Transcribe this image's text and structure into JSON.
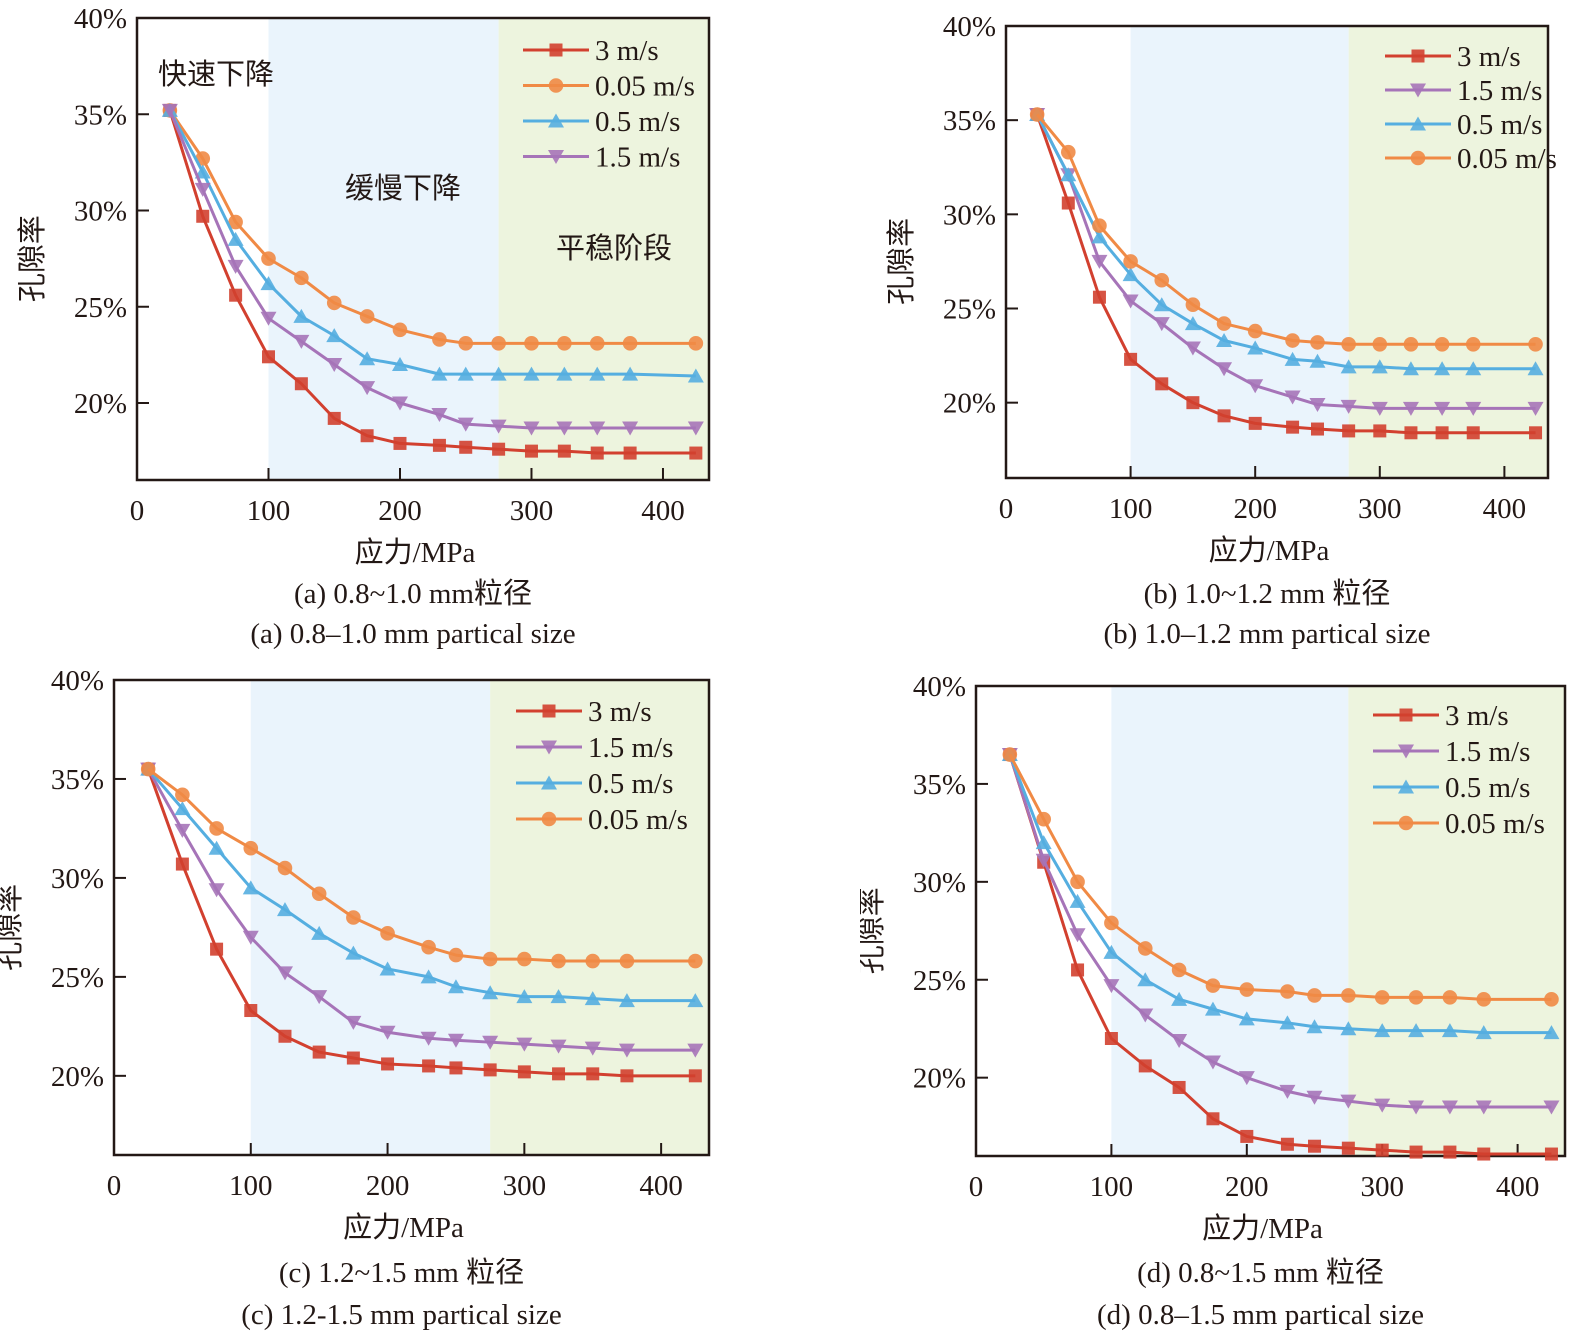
{
  "figure": {
    "xlabel": "应力/MPa",
    "ylabel": "孔隙率",
    "stage_labels": [
      "快速下降",
      "缓慢下降",
      "平稳阶段"
    ]
  },
  "colors": {
    "3 m/s": "#d2402f",
    "0.05 m/s": "#f08a45",
    "0.5 m/s": "#55aee0",
    "1.5 m/s": "#a674b8",
    "slow_zone": "#eaf4fc",
    "stable_zone": "#edf4de",
    "axis": "#231815"
  },
  "chart_data": [
    {
      "type": "line",
      "caption_cn": "(a) 0.8~1.0 mm粒径",
      "caption_en": "(a) 0.8–1.0 mm partical size",
      "xlabel": "应力/MPa",
      "ylabel": "孔隙率",
      "xlim": [
        0,
        435
      ],
      "ylim": [
        16,
        40
      ],
      "xticks": [
        0,
        100,
        200,
        300,
        400
      ],
      "yticks": [
        "20%",
        "25%",
        "30%",
        "35%",
        "40%"
      ],
      "zones": {
        "slow_start": 100,
        "stable_start": 275
      },
      "show_stage_labels": true,
      "legend_position": "top-right",
      "x": [
        25,
        50,
        75,
        100,
        125,
        150,
        175,
        200,
        230,
        250,
        275,
        300,
        325,
        350,
        375,
        425
      ],
      "series": [
        {
          "name": "3 m/s",
          "marker": "square",
          "values": [
            35.2,
            29.7,
            25.6,
            22.4,
            21.0,
            19.2,
            18.3,
            17.9,
            17.8,
            17.7,
            17.6,
            17.5,
            17.5,
            17.4,
            17.4,
            17.4
          ]
        },
        {
          "name": "0.05 m/s",
          "marker": "circle",
          "values": [
            35.2,
            32.7,
            29.4,
            27.5,
            26.5,
            25.2,
            24.5,
            23.8,
            23.3,
            23.1,
            23.1,
            23.1,
            23.1,
            23.1,
            23.1,
            23.1
          ]
        },
        {
          "name": "0.5 m/s",
          "marker": "triangle-up",
          "values": [
            35.2,
            32.0,
            28.5,
            26.2,
            24.5,
            23.5,
            22.3,
            22.0,
            21.5,
            21.5,
            21.5,
            21.5,
            21.5,
            21.5,
            21.5,
            21.4
          ]
        },
        {
          "name": "1.5 m/s",
          "marker": "triangle-down",
          "values": [
            35.2,
            31.1,
            27.1,
            24.4,
            23.2,
            22.0,
            20.8,
            20.0,
            19.4,
            18.9,
            18.8,
            18.7,
            18.7,
            18.7,
            18.7,
            18.7
          ]
        }
      ]
    },
    {
      "type": "line",
      "caption_cn": "(b) 1.0~1.2 mm 粒径",
      "caption_en": "(b) 1.0–1.2 mm partical size",
      "xlabel": "应力/MPa",
      "ylabel": "孔隙率",
      "xlim": [
        0,
        435
      ],
      "ylim": [
        16,
        40
      ],
      "xticks": [
        0,
        100,
        200,
        300,
        400
      ],
      "yticks": [
        "20%",
        "25%",
        "30%",
        "35%",
        "40%"
      ],
      "zones": {
        "slow_start": 100,
        "stable_start": 275
      },
      "show_stage_labels": false,
      "legend_position": "top-right",
      "x": [
        25,
        50,
        75,
        100,
        125,
        150,
        175,
        200,
        230,
        250,
        275,
        300,
        325,
        350,
        375,
        425
      ],
      "series": [
        {
          "name": "3 m/s",
          "marker": "square",
          "values": [
            35.3,
            30.6,
            25.6,
            22.3,
            21.0,
            20.0,
            19.3,
            18.9,
            18.7,
            18.6,
            18.5,
            18.5,
            18.4,
            18.4,
            18.4,
            18.4
          ]
        },
        {
          "name": "1.5 m/s",
          "marker": "triangle-down",
          "values": [
            35.3,
            32.1,
            27.5,
            25.4,
            24.2,
            22.9,
            21.8,
            20.9,
            20.3,
            19.9,
            19.8,
            19.7,
            19.7,
            19.7,
            19.7,
            19.7
          ]
        },
        {
          "name": "0.5 m/s",
          "marker": "triangle-up",
          "values": [
            35.3,
            32.1,
            28.8,
            26.8,
            25.2,
            24.2,
            23.3,
            22.9,
            22.3,
            22.2,
            21.9,
            21.9,
            21.8,
            21.8,
            21.8,
            21.8
          ]
        },
        {
          "name": "0.05 m/s",
          "marker": "circle",
          "values": [
            35.3,
            33.3,
            29.4,
            27.5,
            26.5,
            25.2,
            24.2,
            23.8,
            23.3,
            23.2,
            23.1,
            23.1,
            23.1,
            23.1,
            23.1,
            23.1
          ]
        }
      ]
    },
    {
      "type": "line",
      "caption_cn": "(c) 1.2~1.5 mm 粒径",
      "caption_en": "(c) 1.2-1.5 mm partical size",
      "xlabel": "应力/MPa",
      "ylabel": "孔隙率",
      "xlim": [
        0,
        435
      ],
      "ylim": [
        16,
        40
      ],
      "xticks": [
        0,
        100,
        200,
        300,
        400
      ],
      "yticks": [
        "20%",
        "25%",
        "30%",
        "35%",
        "40%"
      ],
      "zones": {
        "slow_start": 100,
        "stable_start": 275
      },
      "show_stage_labels": false,
      "legend_position": "top-right",
      "x": [
        25,
        50,
        75,
        100,
        125,
        150,
        175,
        200,
        230,
        250,
        275,
        300,
        325,
        350,
        375,
        425
      ],
      "series": [
        {
          "name": "3 m/s",
          "marker": "square",
          "values": [
            35.5,
            30.7,
            26.4,
            23.3,
            22.0,
            21.2,
            20.9,
            20.6,
            20.5,
            20.4,
            20.3,
            20.2,
            20.1,
            20.1,
            20.0,
            20.0
          ]
        },
        {
          "name": "1.5 m/s",
          "marker": "triangle-down",
          "values": [
            35.5,
            32.4,
            29.4,
            27.0,
            25.2,
            24.0,
            22.7,
            22.2,
            21.9,
            21.8,
            21.7,
            21.6,
            21.5,
            21.4,
            21.3,
            21.3
          ]
        },
        {
          "name": "0.5 m/s",
          "marker": "triangle-up",
          "values": [
            35.5,
            33.5,
            31.5,
            29.5,
            28.4,
            27.2,
            26.2,
            25.4,
            25.0,
            24.5,
            24.2,
            24.0,
            24.0,
            23.9,
            23.8,
            23.8
          ]
        },
        {
          "name": "0.05 m/s",
          "marker": "circle",
          "values": [
            35.5,
            34.2,
            32.5,
            31.5,
            30.5,
            29.2,
            28.0,
            27.2,
            26.5,
            26.1,
            25.9,
            25.9,
            25.8,
            25.8,
            25.8,
            25.8
          ]
        }
      ]
    },
    {
      "type": "line",
      "caption_cn": "(d)  0.8~1.5 mm 粒径",
      "caption_en": "(d) 0.8–1.5 mm partical size",
      "xlabel": "应力/MPa",
      "ylabel": "孔隙率",
      "xlim": [
        0,
        435
      ],
      "ylim": [
        16,
        40
      ],
      "xticks": [
        0,
        100,
        200,
        300,
        400
      ],
      "yticks": [
        "20%",
        "25%",
        "30%",
        "35%",
        "40%"
      ],
      "zones": {
        "slow_start": 100,
        "stable_start": 275
      },
      "show_stage_labels": false,
      "legend_position": "top-right",
      "x": [
        25,
        50,
        75,
        100,
        125,
        150,
        175,
        200,
        230,
        250,
        275,
        300,
        325,
        350,
        375,
        425
      ],
      "series": [
        {
          "name": "3 m/s",
          "marker": "square",
          "values": [
            36.5,
            31.0,
            25.5,
            22.0,
            20.6,
            19.5,
            17.9,
            17.0,
            16.6,
            16.5,
            16.4,
            16.3,
            16.2,
            16.2,
            16.1,
            16.1
          ]
        },
        {
          "name": "1.5 m/s",
          "marker": "triangle-down",
          "values": [
            36.5,
            31.1,
            27.3,
            24.7,
            23.2,
            21.9,
            20.8,
            20.0,
            19.3,
            19.0,
            18.8,
            18.6,
            18.5,
            18.5,
            18.5,
            18.5
          ]
        },
        {
          "name": "0.5 m/s",
          "marker": "triangle-up",
          "values": [
            36.5,
            32.0,
            29.0,
            26.4,
            25.0,
            24.0,
            23.5,
            23.0,
            22.8,
            22.6,
            22.5,
            22.4,
            22.4,
            22.4,
            22.3,
            22.3
          ]
        },
        {
          "name": "0.05 m/s",
          "marker": "circle",
          "values": [
            36.5,
            33.2,
            30.0,
            27.9,
            26.6,
            25.5,
            24.7,
            24.5,
            24.4,
            24.2,
            24.2,
            24.1,
            24.1,
            24.1,
            24.0,
            24.0
          ]
        }
      ]
    }
  ]
}
